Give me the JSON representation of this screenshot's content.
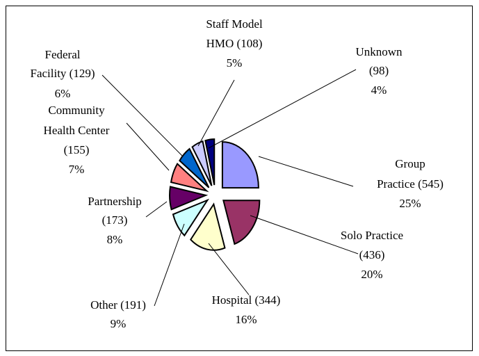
{
  "chart_data": {
    "type": "pie",
    "categories": [
      [
        "Group",
        "Practice (545)"
      ],
      [
        "Solo Practice",
        "(436)"
      ],
      [
        "Hospital (344)"
      ],
      [
        "Other (191)"
      ],
      [
        "Partnership",
        "(173)"
      ],
      [
        "Community",
        "Health Center",
        "(155)"
      ],
      [
        "Federal",
        "Facility (129)"
      ],
      [
        "Staff Model",
        "HMO (108)"
      ],
      [
        "Unknown",
        "(98)"
      ]
    ],
    "values": [
      25,
      20,
      16,
      9,
      8,
      7,
      6,
      5,
      4
    ],
    "value_labels": [
      "25%",
      "20%",
      "16%",
      "9%",
      "8%",
      "7%",
      "6%",
      "5%",
      "4%"
    ],
    "colors": [
      "#9999ff",
      "#993366",
      "#ffffcc",
      "#ccffff",
      "#660066",
      "#ff8080",
      "#0066cc",
      "#ccccff",
      "#000080"
    ]
  }
}
